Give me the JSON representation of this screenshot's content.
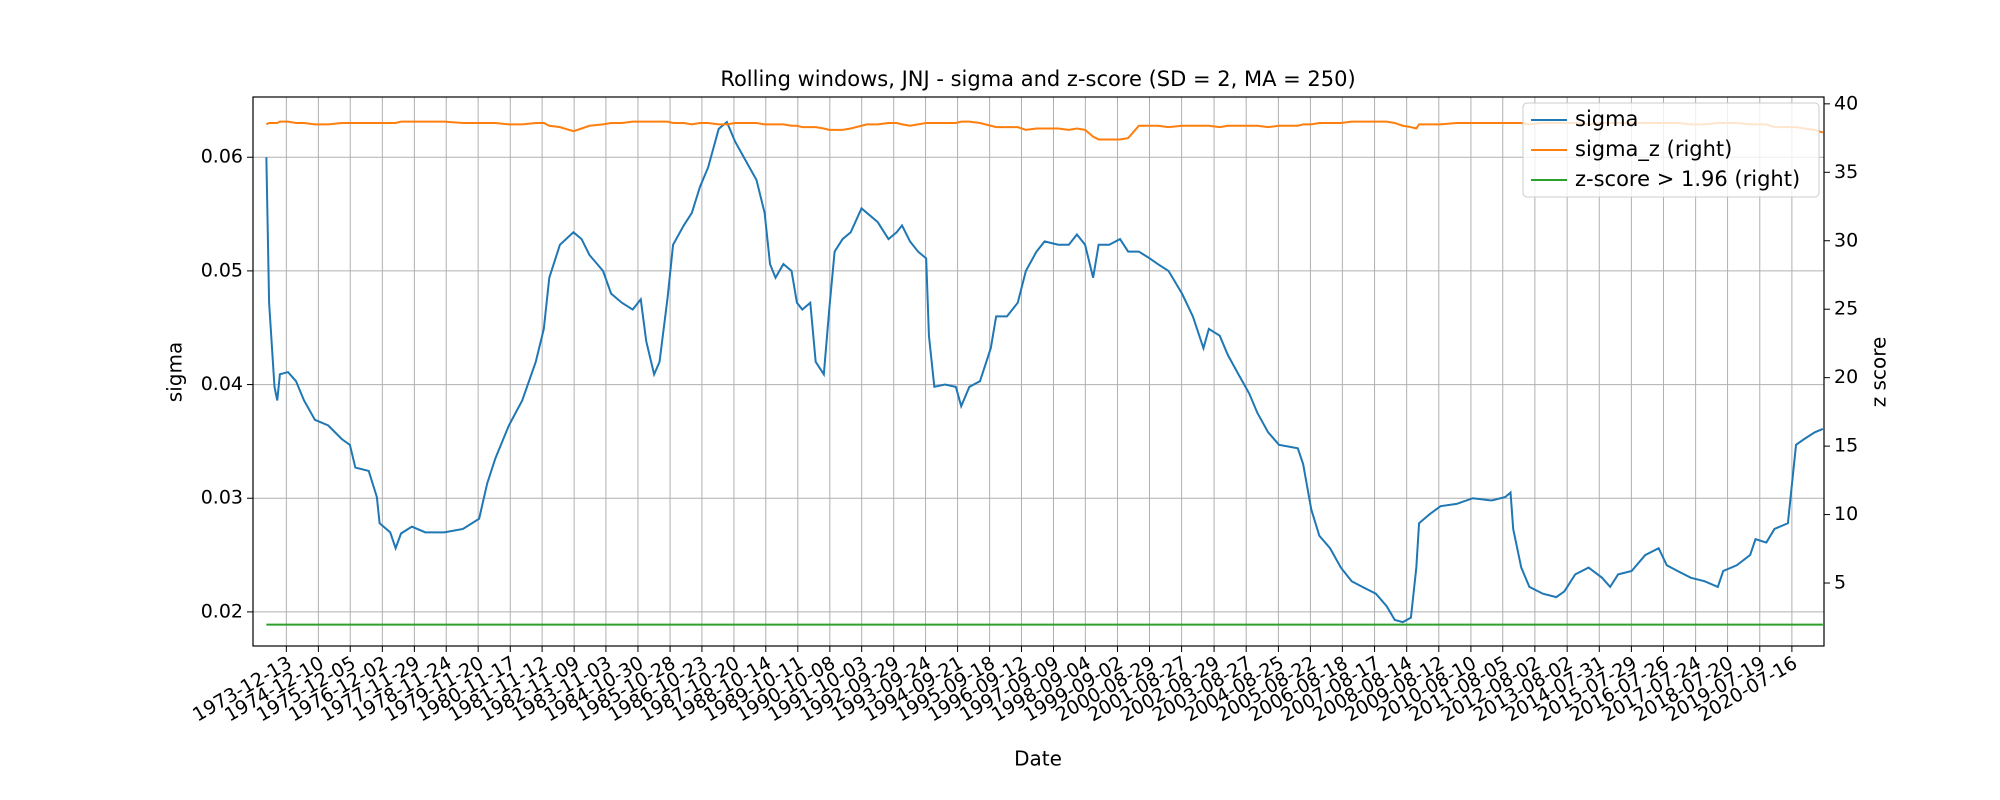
{
  "chart_data": {
    "type": "line",
    "title": "Rolling windows, JNJ - sigma and z-score (SD = 2, MA = 250)",
    "x_label": "Date",
    "y_label": "sigma",
    "y2_label": "z score",
    "x": [
      "1973-05",
      "1973-06",
      "1973-08",
      "1973-09",
      "1973-10",
      "1974-01",
      "1974-04",
      "1974-07",
      "1974-11",
      "1975-04",
      "1975-09",
      "1975-12",
      "1976-02",
      "1976-07",
      "1976-10",
      "1976-11",
      "1977-03",
      "1977-05",
      "1977-07",
      "1977-11",
      "1978-04",
      "1978-11",
      "1979-06",
      "1979-12",
      "1980-03",
      "1980-06",
      "1980-11",
      "1981-04",
      "1981-09",
      "1981-12",
      "1982-02",
      "1982-06",
      "1982-11",
      "1983-02",
      "1983-05",
      "1983-10",
      "1984-01",
      "1984-05",
      "1984-09",
      "1984-12",
      "1985-02",
      "1985-05",
      "1985-07",
      "1985-10",
      "1985-12",
      "1986-04",
      "1986-07",
      "1986-10",
      "1987-01",
      "1987-05",
      "1987-08",
      "1987-11",
      "1988-03",
      "1988-07",
      "1988-10",
      "1988-12",
      "1989-02",
      "1989-05",
      "1989-08",
      "1989-10",
      "1989-12",
      "1990-03",
      "1990-05",
      "1990-08",
      "1990-10",
      "1990-12",
      "1991-03",
      "1991-06",
      "1991-10",
      "1991-12",
      "1992-04",
      "1992-08",
      "1992-11",
      "1993-01",
      "1993-04",
      "1993-07",
      "1993-10",
      "1993-11",
      "1994-01",
      "1994-05",
      "1994-09",
      "1994-11",
      "1995-02",
      "1995-06",
      "1995-10",
      "1995-12",
      "1996-04",
      "1996-08",
      "1996-11",
      "1997-03",
      "1997-06",
      "1997-11",
      "1998-03",
      "1998-06",
      "1998-09",
      "1998-12",
      "1999-02",
      "1999-06",
      "1999-10",
      "2000-01",
      "2000-05",
      "2000-09",
      "2000-12",
      "2001-04",
      "2001-09",
      "2002-01",
      "2002-05",
      "2002-07",
      "2002-11",
      "2003-02",
      "2003-06",
      "2003-10",
      "2004-01",
      "2004-05",
      "2004-09",
      "2005-04",
      "2005-06",
      "2005-09",
      "2005-12",
      "2006-04",
      "2006-08",
      "2006-12",
      "2007-04",
      "2007-09",
      "2008-01",
      "2008-04",
      "2008-07",
      "2008-10",
      "2008-12",
      "2009-01",
      "2009-05",
      "2009-09",
      "2010-03",
      "2010-09",
      "2011-04",
      "2011-09",
      "2011-11",
      "2011-12",
      "2012-03",
      "2012-06",
      "2012-11",
      "2013-04",
      "2013-07",
      "2013-11",
      "2014-04",
      "2014-09",
      "2014-12",
      "2015-03",
      "2015-08",
      "2016-01",
      "2016-06",
      "2016-09",
      "2017-01",
      "2017-06",
      "2017-11",
      "2018-04",
      "2018-06",
      "2018-11",
      "2019-04",
      "2019-06",
      "2019-10",
      "2020-01",
      "2020-06",
      "2020-09",
      "2020-12",
      "2021-04",
      "2021-07"
    ],
    "series": [
      {
        "name": "sigma",
        "color": "#1f77b4",
        "axis": "y",
        "values": [
          0.06,
          0.0472,
          0.0398,
          0.0386,
          0.0409,
          0.0411,
          0.0403,
          0.0386,
          0.0369,
          0.0364,
          0.0352,
          0.0347,
          0.0327,
          0.0324,
          0.0301,
          0.0278,
          0.027,
          0.0256,
          0.0269,
          0.0275,
          0.027,
          0.027,
          0.0273,
          0.0282,
          0.0313,
          0.0335,
          0.0364,
          0.0386,
          0.042,
          0.0449,
          0.0494,
          0.0523,
          0.0534,
          0.0528,
          0.0514,
          0.05,
          0.048,
          0.0472,
          0.0466,
          0.0475,
          0.0438,
          0.0409,
          0.042,
          0.0477,
          0.0523,
          0.054,
          0.0551,
          0.0574,
          0.0591,
          0.0625,
          0.0631,
          0.0614,
          0.0597,
          0.058,
          0.0551,
          0.0506,
          0.0494,
          0.0506,
          0.05,
          0.0472,
          0.0466,
          0.0472,
          0.042,
          0.0409,
          0.0466,
          0.0517,
          0.0528,
          0.0534,
          0.0555,
          0.0551,
          0.0543,
          0.0528,
          0.0534,
          0.054,
          0.0526,
          0.0517,
          0.0511,
          0.0443,
          0.0398,
          0.04,
          0.0398,
          0.0381,
          0.0398,
          0.0403,
          0.0432,
          0.046,
          0.046,
          0.0472,
          0.05,
          0.0517,
          0.0526,
          0.0523,
          0.0523,
          0.0532,
          0.0523,
          0.0494,
          0.0523,
          0.0523,
          0.0528,
          0.0517,
          0.0517,
          0.0511,
          0.0506,
          0.05,
          0.048,
          0.046,
          0.0432,
          0.0449,
          0.0443,
          0.0426,
          0.0409,
          0.0392,
          0.0375,
          0.0358,
          0.0347,
          0.0344,
          0.033,
          0.029,
          0.0267,
          0.0256,
          0.0239,
          0.0227,
          0.0222,
          0.0216,
          0.0205,
          0.0193,
          0.0191,
          0.0195,
          0.0239,
          0.0278,
          0.0286,
          0.0293,
          0.0295,
          0.03,
          0.0298,
          0.0301,
          0.0305,
          0.0273,
          0.0239,
          0.0222,
          0.0216,
          0.0213,
          0.0218,
          0.0233,
          0.0239,
          0.023,
          0.0222,
          0.0233,
          0.0236,
          0.025,
          0.0256,
          0.0241,
          0.0236,
          0.023,
          0.0227,
          0.0222,
          0.0236,
          0.0241,
          0.025,
          0.0264,
          0.0261,
          0.0273,
          0.0278,
          0.0347,
          0.0352,
          0.0358,
          0.0361
        ]
      },
      {
        "name": "sigma_z (right)",
        "color": "#ff7f0e",
        "axis": "y2",
        "values": [
          38.5,
          38.6,
          38.6,
          38.6,
          38.7,
          38.7,
          38.6,
          38.6,
          38.5,
          38.5,
          38.6,
          38.6,
          38.6,
          38.6,
          38.6,
          38.6,
          38.6,
          38.6,
          38.7,
          38.7,
          38.7,
          38.7,
          38.6,
          38.6,
          38.6,
          38.6,
          38.5,
          38.5,
          38.6,
          38.6,
          38.4,
          38.3,
          38.0,
          38.2,
          38.4,
          38.5,
          38.6,
          38.6,
          38.7,
          38.7,
          38.7,
          38.7,
          38.7,
          38.7,
          38.6,
          38.6,
          38.5,
          38.6,
          38.6,
          38.5,
          38.5,
          38.6,
          38.6,
          38.6,
          38.5,
          38.5,
          38.5,
          38.5,
          38.4,
          38.4,
          38.3,
          38.3,
          38.3,
          38.2,
          38.1,
          38.1,
          38.1,
          38.2,
          38.4,
          38.5,
          38.5,
          38.6,
          38.6,
          38.5,
          38.4,
          38.5,
          38.6,
          38.6,
          38.6,
          38.6,
          38.6,
          38.7,
          38.7,
          38.6,
          38.4,
          38.3,
          38.3,
          38.3,
          38.1,
          38.2,
          38.2,
          38.2,
          38.1,
          38.2,
          38.1,
          37.6,
          37.4,
          37.4,
          37.4,
          37.5,
          38.4,
          38.4,
          38.4,
          38.3,
          38.4,
          38.4,
          38.4,
          38.4,
          38.3,
          38.4,
          38.4,
          38.4,
          38.4,
          38.3,
          38.4,
          38.4,
          38.5,
          38.5,
          38.6,
          38.6,
          38.6,
          38.7,
          38.7,
          38.7,
          38.7,
          38.6,
          38.4,
          38.3,
          38.2,
          38.5,
          38.5,
          38.5,
          38.6,
          38.6,
          38.6,
          38.6,
          38.6,
          38.6,
          38.6,
          38.5,
          38.6,
          38.6,
          38.6,
          38.6,
          38.5,
          38.6,
          38.6,
          38.6,
          38.6,
          38.6,
          38.6,
          38.6,
          38.6,
          38.5,
          38.5,
          38.6,
          38.6,
          38.6,
          38.5,
          38.5,
          38.5,
          38.3,
          38.3,
          38.3,
          38.2,
          38.1,
          37.9
        ]
      },
      {
        "name": "z-score > 1.96 (right)",
        "color": "#2ca02c",
        "axis": "y2",
        "x": [
          "1973-05",
          "2021-07"
        ],
        "values": [
          1.96,
          1.96
        ]
      }
    ],
    "xlim": [
      "1972-12-01",
      "2021-07-14"
    ],
    "xticks": [
      "1973-12-13",
      "1974-12-10",
      "1975-12-05",
      "1976-12-02",
      "1977-11-29",
      "1978-11-24",
      "1979-11-20",
      "1980-11-17",
      "1981-11-12",
      "1982-11-09",
      "1983-11-03",
      "1984-10-30",
      "1985-10-28",
      "1986-10-23",
      "1987-10-20",
      "1988-10-14",
      "1989-10-11",
      "1990-10-08",
      "1991-10-03",
      "1992-09-29",
      "1993-09-24",
      "1994-09-21",
      "1995-09-18",
      "1996-09-12",
      "1997-09-09",
      "1998-09-04",
      "1999-09-02",
      "2000-08-29",
      "2001-08-27",
      "2002-08-29",
      "2003-08-27",
      "2004-08-25",
      "2005-08-22",
      "2006-08-18",
      "2007-08-17",
      "2008-08-14",
      "2009-08-12",
      "2010-08-10",
      "2011-08-05",
      "2012-08-02",
      "2013-08-02",
      "2014-07-31",
      "2015-07-29",
      "2016-07-26",
      "2017-07-24",
      "2018-07-20",
      "2019-07-19",
      "2020-07-16"
    ],
    "ylim": [
      0.017,
      0.0653
    ],
    "yticks": [
      0.02,
      0.03,
      0.04,
      0.05,
      0.06
    ],
    "y2lim": [
      0.4,
      40.5
    ],
    "y2ticks": [
      5,
      10,
      15,
      20,
      25,
      30,
      35,
      40
    ],
    "grid": true,
    "legend": "upper right"
  }
}
